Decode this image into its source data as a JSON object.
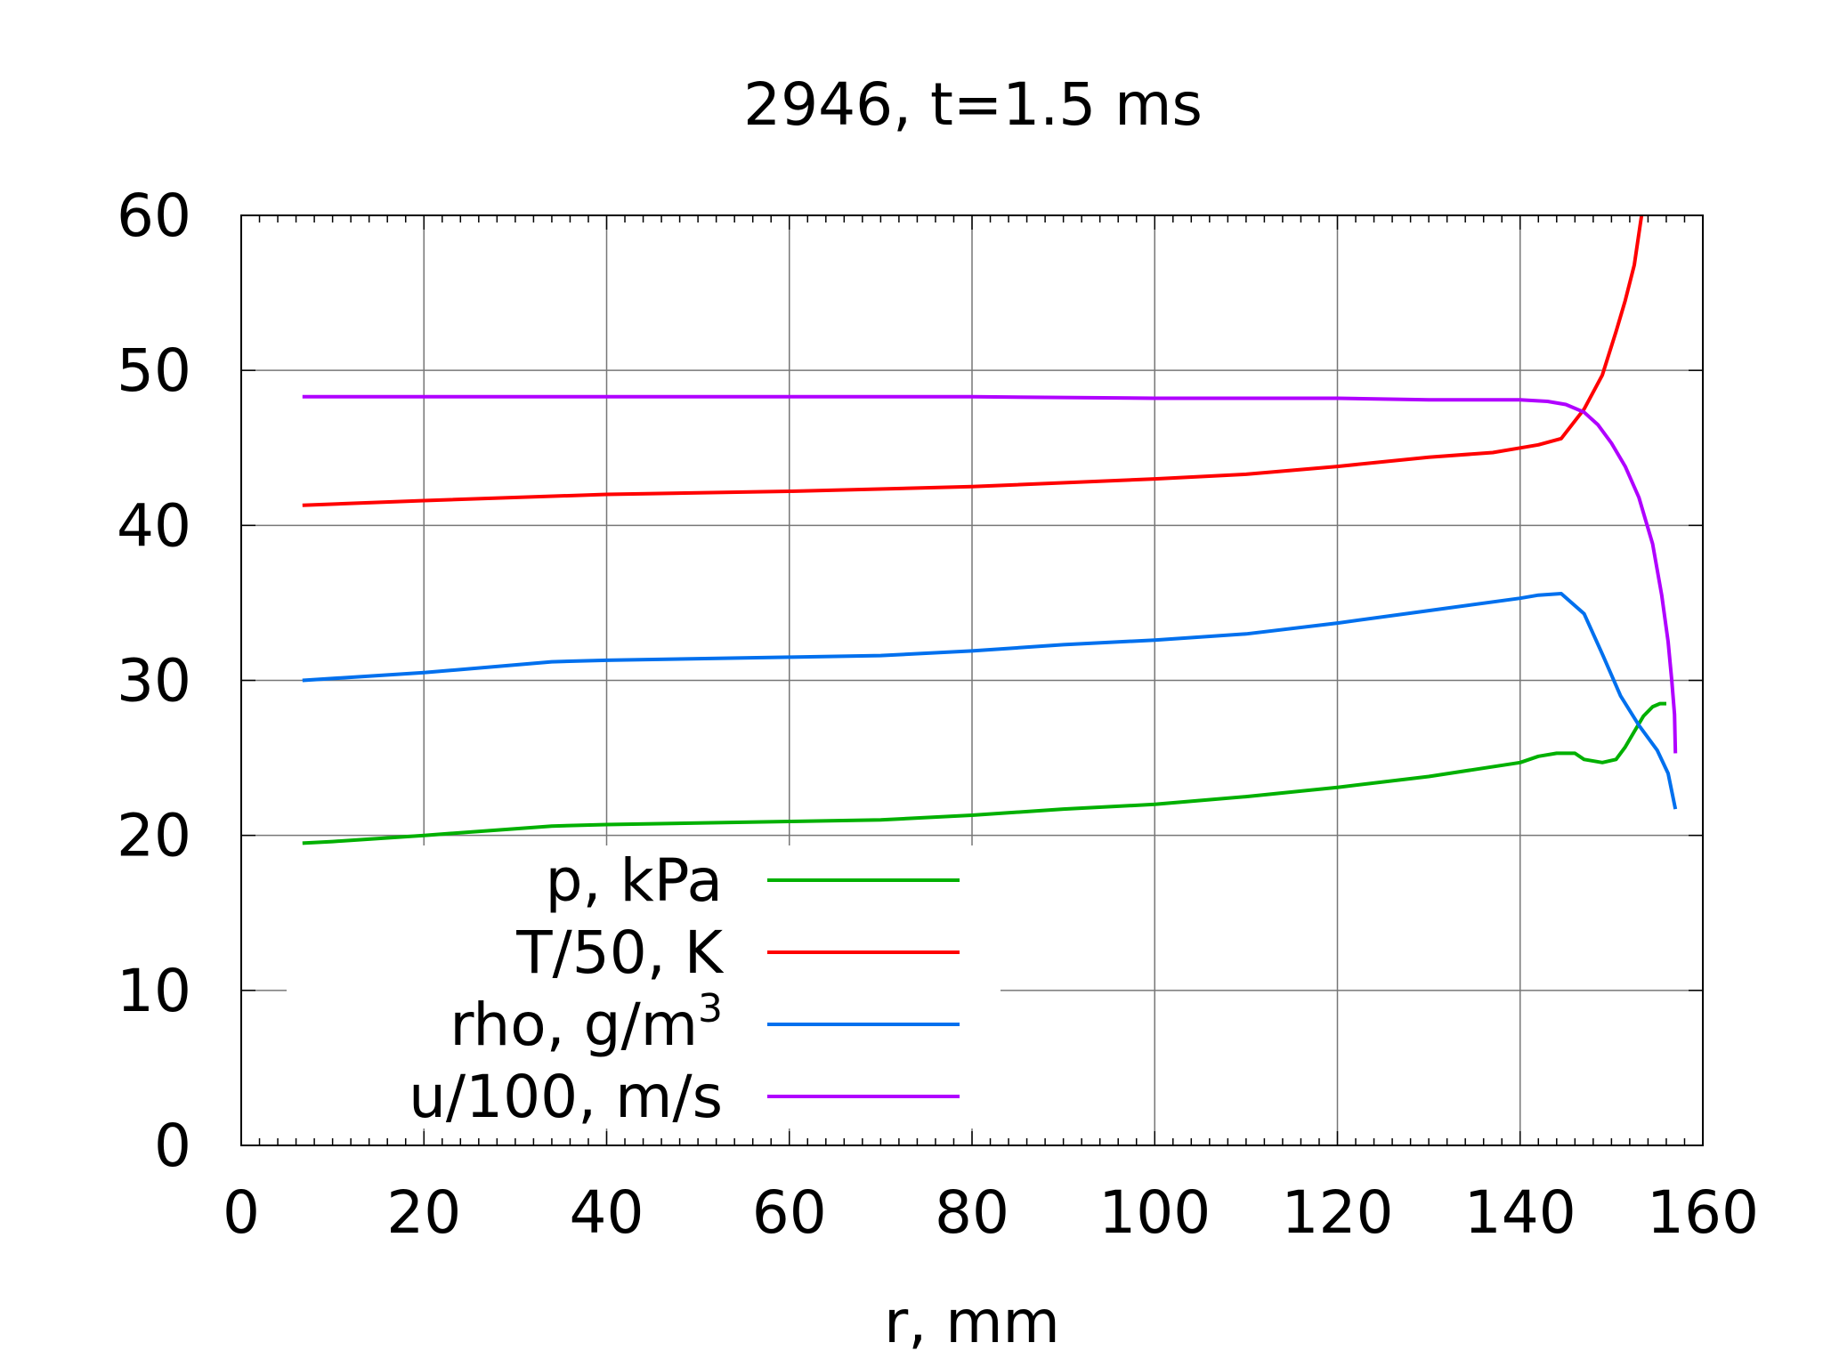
{
  "chart_data": {
    "type": "line",
    "title": "2946, t=1.5 ms",
    "xlabel": "r, mm",
    "ylabel": "",
    "xlim": [
      0,
      160
    ],
    "ylim": [
      0,
      60
    ],
    "xticks": [
      0,
      20,
      40,
      60,
      80,
      100,
      120,
      140,
      160
    ],
    "yticks": [
      0,
      10,
      20,
      30,
      40,
      50,
      60
    ],
    "xtick_labels": [
      "0",
      "20",
      "40",
      "60",
      "80",
      "100",
      "120",
      "140",
      "160"
    ],
    "ytick_labels": [
      "0",
      "10",
      "20",
      "30",
      "40",
      "50",
      "60"
    ],
    "grid": true,
    "legend": {
      "placement": "bottom-left",
      "entries": [
        {
          "label": "p, kPa",
          "sup": ""
        },
        {
          "label": "T/50, K",
          "sup": ""
        },
        {
          "label": "rho, g/m",
          "sup": "3"
        },
        {
          "label": "u/100, m/s",
          "sup": ""
        }
      ]
    },
    "series": [
      {
        "name": "p, kPa",
        "color": "#00b000",
        "x": [
          6.7,
          10,
          20,
          34,
          40,
          50,
          60,
          70,
          80,
          90,
          100,
          110,
          120,
          130,
          140,
          142,
          144,
          146,
          147,
          149,
          150.5,
          151.5,
          152.5,
          153.5,
          154.5,
          155.3,
          156
        ],
        "y": [
          19.5,
          19.6,
          20.0,
          20.6,
          20.7,
          20.8,
          20.9,
          21.0,
          21.3,
          21.7,
          22.0,
          22.5,
          23.1,
          23.8,
          24.7,
          25.1,
          25.3,
          25.3,
          24.9,
          24.7,
          24.9,
          25.7,
          26.7,
          27.7,
          28.3,
          28.5,
          28.5
        ]
      },
      {
        "name": "T/50, K",
        "color": "#ff0000",
        "x": [
          6.7,
          20,
          40,
          60,
          80,
          100,
          110,
          120,
          130,
          137,
          140,
          142,
          144.5,
          147,
          149,
          150.5,
          151.5,
          152.5,
          153.3
        ],
        "y": [
          41.3,
          41.6,
          42.0,
          42.2,
          42.5,
          43.0,
          43.3,
          43.8,
          44.4,
          44.7,
          45.0,
          45.2,
          45.6,
          47.5,
          49.7,
          52.5,
          54.5,
          56.8,
          60.0
        ]
      },
      {
        "name": "rho, g/m3",
        "color": "#0070ee",
        "x": [
          6.7,
          20,
          34,
          40,
          50,
          60,
          70,
          80,
          90,
          100,
          110,
          120,
          130,
          140,
          142,
          144.5,
          147,
          149,
          151,
          153,
          155,
          156.2,
          157
        ],
        "y": [
          30.0,
          30.5,
          31.2,
          31.3,
          31.4,
          31.5,
          31.6,
          31.9,
          32.3,
          32.6,
          33.0,
          33.7,
          34.5,
          35.3,
          35.5,
          35.6,
          34.3,
          31.7,
          29.0,
          27.1,
          25.5,
          24.0,
          21.7
        ]
      },
      {
        "name": "u/100, m/s",
        "color": "#b000ff",
        "x": [
          6.7,
          20,
          40,
          60,
          80,
          100,
          120,
          130,
          140,
          143,
          145,
          147,
          148.5,
          150,
          151.5,
          153,
          154.5,
          155.5,
          156.2,
          156.6,
          156.9,
          157
        ],
        "y": [
          48.3,
          48.3,
          48.3,
          48.3,
          48.3,
          48.2,
          48.2,
          48.1,
          48.1,
          48.0,
          47.8,
          47.3,
          46.5,
          45.3,
          43.8,
          41.8,
          38.8,
          35.5,
          32.5,
          30.0,
          27.8,
          25.3
        ]
      }
    ]
  }
}
